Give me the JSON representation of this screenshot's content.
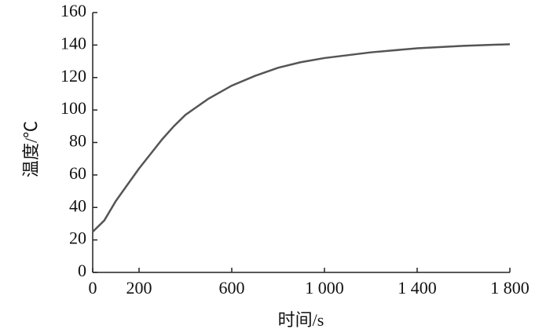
{
  "chart_data": {
    "type": "line",
    "x_label": "时间/s",
    "y_label": "温度/℃",
    "x": [
      0,
      50,
      100,
      150,
      200,
      250,
      300,
      350,
      400,
      500,
      600,
      700,
      800,
      900,
      1000,
      1200,
      1400,
      1600,
      1800
    ],
    "series": [
      {
        "name": "温度",
        "color": "#555555",
        "values": [
          25,
          32,
          44,
          54,
          64,
          73,
          82,
          90,
          97,
          107,
          115,
          121,
          126,
          129.5,
          132,
          135.5,
          138,
          139.5,
          140.5
        ]
      }
    ],
    "xlim": [
      0,
      1800
    ],
    "xticks": [
      0,
      200,
      600,
      {
        "value": 1000,
        "label": "1 000"
      },
      {
        "value": 1400,
        "label": "1 400"
      },
      {
        "value": 1800,
        "label": "1 800"
      }
    ],
    "ylim": [
      0,
      160
    ],
    "yticks": [
      0,
      20,
      40,
      60,
      80,
      100,
      120,
      140,
      160
    ]
  }
}
